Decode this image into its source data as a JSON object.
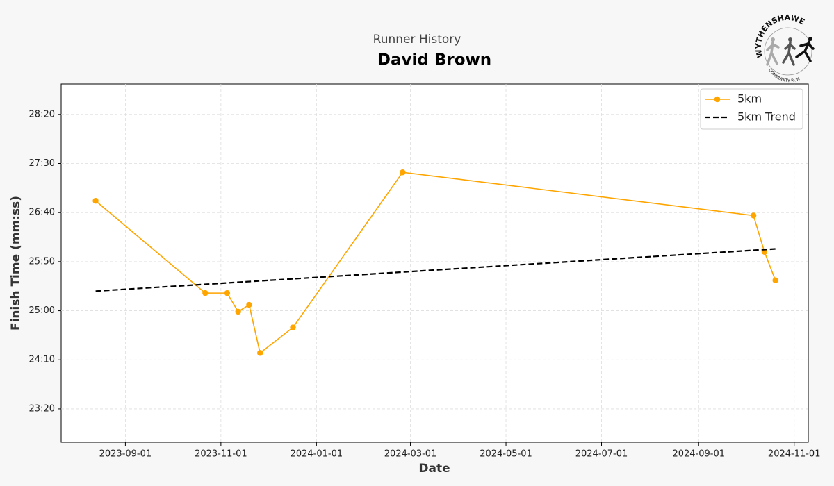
{
  "chart_data": {
    "type": "line",
    "title": "Runner History",
    "subtitle": "David Brown",
    "x_label": "Date",
    "y_label": "Finish Time (mm:ss)",
    "logo": {
      "top": "WYTHENSHAWE",
      "bottom": "COMMUNITY RUN"
    },
    "xlim": [
      "2023-07-22",
      "2024-11-10"
    ],
    "xticks": [
      "2023-09-01",
      "2023-11-01",
      "2024-01-01",
      "2024-03-01",
      "2024-05-01",
      "2024-07-01",
      "2024-09-01",
      "2024-11-01"
    ],
    "ylim": [
      1366,
      1731
    ],
    "yticks": [
      {
        "value": 1400,
        "label": "23:20"
      },
      {
        "value": 1450,
        "label": "24:10"
      },
      {
        "value": 1500,
        "label": "25:00"
      },
      {
        "value": 1550,
        "label": "25:50"
      },
      {
        "value": 1600,
        "label": "26:40"
      },
      {
        "value": 1650,
        "label": "27:30"
      },
      {
        "value": 1700,
        "label": "28:20"
      }
    ],
    "grid": true,
    "legend": "upper right",
    "series": [
      {
        "name": "5km",
        "color": "#ffa500",
        "marker": true,
        "linestyle": "solid",
        "x": [
          "2023-08-13",
          "2023-10-22",
          "2023-11-05",
          "2023-11-12",
          "2023-11-19",
          "2023-11-26",
          "2023-12-17",
          "2024-02-25",
          "2024-10-06",
          "2024-10-13",
          "2024-10-20"
        ],
        "values": [
          1612,
          1518,
          1518,
          1499,
          1506,
          1457,
          1483,
          1641,
          1597,
          1560,
          1531
        ]
      },
      {
        "name": "5km Trend",
        "color": "#000000",
        "marker": false,
        "linestyle": "dashed",
        "x": [
          "2023-08-13",
          "2024-10-20"
        ],
        "values": [
          1520,
          1563
        ]
      }
    ]
  }
}
